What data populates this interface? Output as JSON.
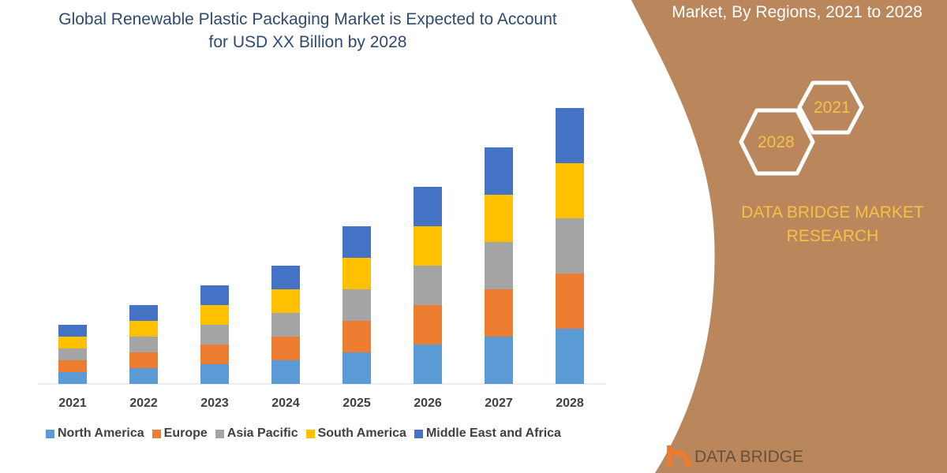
{
  "title": "Global Renewable Plastic Packaging Market is Expected to Account for USD XX Billion by 2028",
  "side_title": "Market, By Regions, 2021 to 2028",
  "hex_labels": [
    "2021",
    "2028"
  ],
  "brand": "DATA BRIDGE MARKET RESEARCH",
  "logo_text": "DATA BRIDGE",
  "colors": {
    "panel": "#b9875b",
    "accent": "#f4c04a"
  },
  "chart_data": {
    "type": "bar",
    "stacked": true,
    "title": "Global Renewable Plastic Packaging Market is Expected to Account for USD XX Billion by 2028",
    "categories": [
      "2021",
      "2022",
      "2023",
      "2024",
      "2025",
      "2026",
      "2027",
      "2028"
    ],
    "series": [
      {
        "name": "North America",
        "color": "#5b9bd5",
        "values": [
          3,
          4,
          5,
          6,
          8,
          10,
          12,
          14
        ]
      },
      {
        "name": "Europe",
        "color": "#ed7d31",
        "values": [
          3,
          4,
          5,
          6,
          8,
          10,
          12,
          14
        ]
      },
      {
        "name": "Asia Pacific",
        "color": "#a5a5a5",
        "values": [
          3,
          4,
          5,
          6,
          8,
          10,
          12,
          14
        ]
      },
      {
        "name": "South America",
        "color": "#ffc000",
        "values": [
          3,
          4,
          5,
          6,
          8,
          10,
          12,
          14
        ]
      },
      {
        "name": "Middle East and Africa",
        "color": "#4472c4",
        "values": [
          3,
          4,
          5,
          6,
          8,
          10,
          12,
          14
        ]
      }
    ],
    "ylim": [
      0,
      70
    ],
    "y_axis_shown": false,
    "grid": false,
    "legend": "bottom"
  }
}
